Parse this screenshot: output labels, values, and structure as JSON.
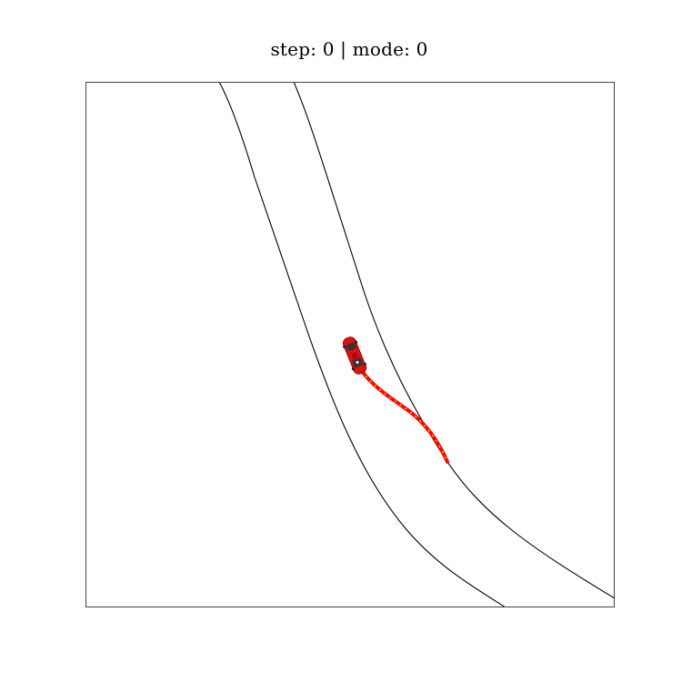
{
  "title": "step: 0 | mode: 0",
  "colors": {
    "background": "#ffffff",
    "frame": "#444444",
    "road_edge": "#000000",
    "trajectory": "#ff0000",
    "trajectory_dots": "#ffcc00",
    "car_body": "#e01010",
    "car_window": "#333333"
  },
  "scene": {
    "road_edges": [
      "left-road-edge",
      "right-road-edge"
    ],
    "vehicle": "red-car",
    "planned_path": "red-trajectory"
  }
}
